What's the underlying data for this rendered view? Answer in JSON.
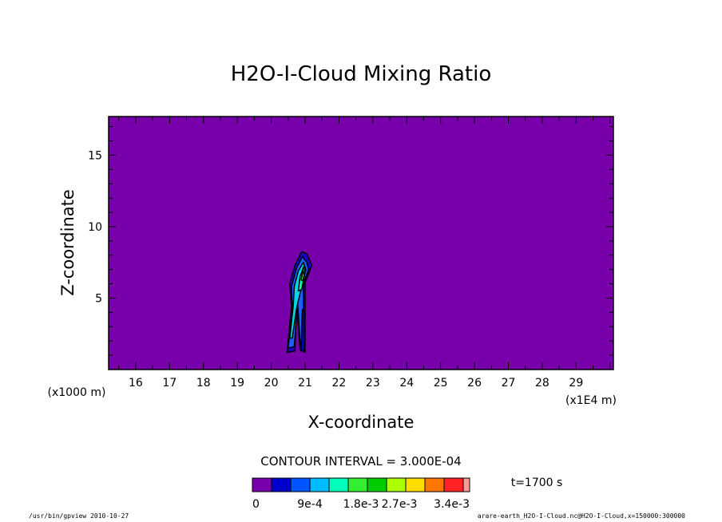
{
  "chart_data": {
    "type": "heatmap",
    "title": "H2O-I-Cloud Mixing Ratio",
    "xlabel": "X-coordinate",
    "ylabel": "Z-coordinate",
    "x_unit_left": "(x1000 m)",
    "x_unit_right": "(x1E4 m)",
    "xlim": [
      15.2,
      30.1
    ],
    "ylim": [
      0,
      17.7
    ],
    "x_ticks": [
      16,
      17,
      18,
      19,
      20,
      21,
      22,
      23,
      24,
      25,
      26,
      27,
      28,
      29
    ],
    "y_ticks": [
      5,
      10,
      15
    ],
    "contour_interval": "CONTOUR INTERVAL = 3.000E-04",
    "colorbar": {
      "colors": [
        "#7700aa",
        "#0000cc",
        "#0055ff",
        "#00bbff",
        "#00ffbb",
        "#33ee33",
        "#00cc00",
        "#aaff00",
        "#ffdd00",
        "#ff7700",
        "#ff2222",
        "#ff9999"
      ],
      "labels": [
        "0",
        "9e-4",
        "1.8e-3",
        "2.7e-3",
        "3.4e-3"
      ]
    },
    "time_label": "t=1700 s",
    "background_color": "#7700aa",
    "cloud": {
      "outer_blue": [
        [
          20.47,
          1.2
        ],
        [
          20.6,
          4.5
        ],
        [
          20.55,
          6.0
        ],
        [
          20.7,
          7.3
        ],
        [
          20.9,
          8.25
        ],
        [
          21.05,
          8.1
        ],
        [
          21.2,
          7.3
        ],
        [
          21.0,
          6.1
        ],
        [
          21.0,
          1.2
        ],
        [
          20.85,
          1.4
        ],
        [
          20.75,
          4.6
        ],
        [
          20.7,
          1.3
        ]
      ],
      "mid_blue": [
        [
          20.5,
          1.5
        ],
        [
          20.62,
          4.3
        ],
        [
          20.6,
          5.8
        ],
        [
          20.75,
          7.1
        ],
        [
          20.92,
          7.9
        ],
        [
          21.05,
          7.5
        ],
        [
          21.1,
          7.0
        ],
        [
          20.95,
          6.0
        ],
        [
          20.95,
          1.5
        ],
        [
          20.86,
          1.6
        ],
        [
          20.78,
          4.6
        ],
        [
          20.68,
          1.6
        ]
      ],
      "cyan": [
        [
          20.55,
          2.2
        ],
        [
          20.65,
          4.5
        ],
        [
          20.68,
          5.8
        ],
        [
          20.8,
          6.9
        ],
        [
          20.95,
          7.5
        ],
        [
          21.02,
          7.0
        ],
        [
          20.9,
          5.8
        ],
        [
          20.75,
          4.3
        ],
        [
          20.62,
          2.2
        ]
      ],
      "aqua": [
        [
          20.8,
          5.5
        ],
        [
          20.85,
          6.5
        ],
        [
          20.96,
          7.2
        ],
        [
          21.0,
          6.8
        ],
        [
          20.9,
          5.6
        ]
      ],
      "green_core": [
        [
          20.88,
          6.3
        ],
        [
          20.94,
          6.9
        ],
        [
          20.98,
          6.6
        ],
        [
          20.93,
          6.2
        ]
      ],
      "right_tail": [
        [
          20.88,
          1.3
        ],
        [
          20.9,
          2.8
        ],
        [
          20.92,
          4.2
        ],
        [
          20.98,
          4.0
        ],
        [
          20.98,
          1.3
        ]
      ]
    }
  },
  "footer": {
    "left": "/usr/bin/gpview  2010-10-27",
    "right": "arare-earth_H2O-I-Cloud.nc@H2O-I-Cloud,x=150000:300000"
  }
}
